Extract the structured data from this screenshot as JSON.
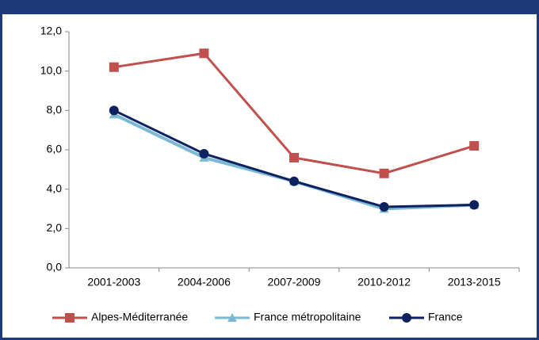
{
  "chart_data": {
    "type": "line",
    "categories": [
      "2001-2003",
      "2004-2006",
      "2007-2009",
      "2010-2012",
      "2013-2015"
    ],
    "series": [
      {
        "name": "Alpes-Méditerranée",
        "color": "#c0504d",
        "marker": "square",
        "values": [
          10.2,
          10.9,
          5.6,
          4.8,
          6.2
        ]
      },
      {
        "name": "France métropolitaine",
        "color": "#7ab8d4",
        "marker": "triangle",
        "values": [
          7.8,
          5.6,
          4.4,
          3.0,
          3.2
        ]
      },
      {
        "name": "France",
        "color": "#0f2260",
        "marker": "circle",
        "values": [
          8.0,
          5.8,
          4.4,
          3.1,
          3.2
        ]
      }
    ],
    "ylim": [
      0,
      12
    ],
    "yticks": [
      {
        "value": 0,
        "label": "0,0"
      },
      {
        "value": 2,
        "label": "2,0"
      },
      {
        "value": 4,
        "label": "4,0"
      },
      {
        "value": 6,
        "label": "6,0"
      },
      {
        "value": 8,
        "label": "8,0"
      },
      {
        "value": 10,
        "label": "10,0"
      },
      {
        "value": 12,
        "label": "12,0"
      }
    ],
    "grid": false,
    "legend": "bottom"
  }
}
